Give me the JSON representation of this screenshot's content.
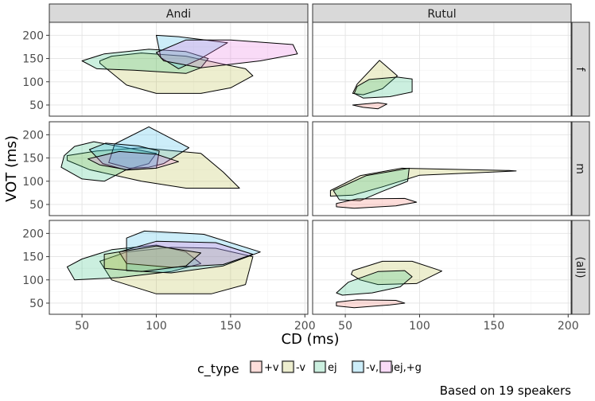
{
  "chart_data": {
    "type": "area",
    "facet_cols": [
      "Andi",
      "Rutul"
    ],
    "facet_rows": [
      "f",
      "m",
      "(all)"
    ],
    "xlabel": "CD (ms)",
    "ylabel": "VOT (ms)",
    "xlim": [
      28,
      202
    ],
    "ylim": [
      26,
      228
    ],
    "x_ticks": [
      50,
      100,
      150,
      200
    ],
    "y_ticks": [
      50,
      100,
      150,
      200
    ],
    "x_tick_labels": [
      "50",
      "100",
      "150",
      "200"
    ],
    "y_tick_labels": [
      "50",
      "100",
      "150",
      "200"
    ],
    "grid": true,
    "legend": {
      "title": "c_type",
      "position": "bottom",
      "entries": [
        {
          "label": "+v",
          "fill": "#f8766d"
        },
        {
          "label": "-v",
          "fill": "#b9bb3f"
        },
        {
          "label": "ej",
          "fill": "#2fbf7f"
        },
        {
          "label": "-v,+g",
          "fill": "#33b8e6"
        },
        {
          "label": "ej,+g",
          "fill": "#e66fe0"
        }
      ]
    },
    "caption": "Based on 19 speakers",
    "hulls": [
      {
        "col": 0,
        "row": 0,
        "series": "-v",
        "points": [
          [
            62,
            145
          ],
          [
            70,
            155
          ],
          [
            90,
            162
          ],
          [
            120,
            155
          ],
          [
            145,
            138
          ],
          [
            160,
            128
          ],
          [
            165,
            113
          ],
          [
            150,
            87
          ],
          [
            130,
            75
          ],
          [
            100,
            75
          ],
          [
            80,
            93
          ],
          [
            62,
            140
          ]
        ]
      },
      {
        "col": 0,
        "row": 0,
        "series": "ej",
        "points": [
          [
            50,
            145
          ],
          [
            65,
            160
          ],
          [
            95,
            170
          ],
          [
            120,
            165
          ],
          [
            135,
            150
          ],
          [
            130,
            130
          ],
          [
            120,
            118
          ],
          [
            85,
            125
          ],
          [
            60,
            128
          ]
        ]
      },
      {
        "col": 0,
        "row": 0,
        "series": "-v,+g",
        "points": [
          [
            100,
            200
          ],
          [
            115,
            197
          ],
          [
            148,
            184
          ],
          [
            130,
            150
          ],
          [
            115,
            128
          ],
          [
            103,
            152
          ]
        ]
      },
      {
        "col": 0,
        "row": 0,
        "series": "ej,+g",
        "points": [
          [
            100,
            163
          ],
          [
            120,
            190
          ],
          [
            150,
            190
          ],
          [
            192,
            180
          ],
          [
            195,
            160
          ],
          [
            170,
            145
          ],
          [
            130,
            130
          ],
          [
            105,
            145
          ]
        ]
      },
      {
        "col": 0,
        "row": 1,
        "series": "-v",
        "points": [
          [
            40,
            155
          ],
          [
            60,
            165
          ],
          [
            90,
            172
          ],
          [
            130,
            160
          ],
          [
            145,
            120
          ],
          [
            156,
            85
          ],
          [
            120,
            85
          ],
          [
            90,
            100
          ],
          [
            55,
            125
          ],
          [
            40,
            145
          ]
        ]
      },
      {
        "col": 0,
        "row": 1,
        "series": "ej",
        "points": [
          [
            38,
            155
          ],
          [
            45,
            175
          ],
          [
            58,
            185
          ],
          [
            80,
            172
          ],
          [
            100,
            160
          ],
          [
            95,
            138
          ],
          [
            80,
            125
          ],
          [
            65,
            100
          ],
          [
            50,
            105
          ],
          [
            36,
            130
          ]
        ]
      },
      {
        "col": 0,
        "row": 1,
        "series": "-v,+g",
        "points": [
          [
            72,
            180
          ],
          [
            95,
            217
          ],
          [
            122,
            172
          ],
          [
            105,
            138
          ],
          [
            95,
            130
          ],
          [
            82,
            128
          ],
          [
            68,
            140
          ]
        ]
      },
      {
        "col": 0,
        "row": 1,
        "series": "-v,+g",
        "points": [
          [
            55,
            168
          ],
          [
            66,
            182
          ],
          [
            88,
            176
          ],
          [
            102,
            165
          ],
          [
            100,
            128
          ],
          [
            80,
            124
          ],
          [
            64,
            138
          ]
        ]
      },
      {
        "col": 0,
        "row": 1,
        "series": "ej,+g",
        "points": [
          [
            54,
            148
          ],
          [
            75,
            164
          ],
          [
            100,
            158
          ],
          [
            115,
            142
          ],
          [
            100,
            128
          ],
          [
            80,
            125
          ],
          [
            62,
            135
          ]
        ]
      },
      {
        "col": 0,
        "row": 2,
        "series": "-v",
        "points": [
          [
            80,
            160
          ],
          [
            110,
            170
          ],
          [
            140,
            168
          ],
          [
            165,
            150
          ],
          [
            160,
            90
          ],
          [
            137,
            70
          ],
          [
            100,
            70
          ],
          [
            70,
            100
          ],
          [
            62,
            140
          ]
        ]
      },
      {
        "col": 0,
        "row": 2,
        "series": "ej",
        "points": [
          [
            50,
            145
          ],
          [
            70,
            165
          ],
          [
            100,
            175
          ],
          [
            120,
            160
          ],
          [
            130,
            135
          ],
          [
            110,
            118
          ],
          [
            75,
            105
          ],
          [
            45,
            100
          ],
          [
            40,
            128
          ]
        ]
      },
      {
        "col": 0,
        "row": 2,
        "series": "-v,+g",
        "points": [
          [
            80,
            190
          ],
          [
            92,
            205
          ],
          [
            132,
            198
          ],
          [
            170,
            160
          ],
          [
            145,
            130
          ],
          [
            110,
            115
          ],
          [
            80,
            120
          ]
        ]
      },
      {
        "col": 0,
        "row": 2,
        "series": "ej,+g",
        "points": [
          [
            75,
            160
          ],
          [
            100,
            183
          ],
          [
            140,
            180
          ],
          [
            165,
            155
          ],
          [
            145,
            133
          ],
          [
            110,
            127
          ],
          [
            80,
            135
          ]
        ]
      },
      {
        "col": 0,
        "row": 2,
        "series": "-v",
        "points": [
          [
            65,
            155
          ],
          [
            100,
            173
          ],
          [
            130,
            158
          ],
          [
            120,
            130
          ],
          [
            90,
            118
          ],
          [
            65,
            125
          ]
        ]
      },
      {
        "col": 1,
        "row": 0,
        "series": "-v",
        "points": [
          [
            58,
            95
          ],
          [
            73,
            146
          ],
          [
            85,
            113
          ],
          [
            75,
            85
          ],
          [
            62,
            72
          ],
          [
            55,
            75
          ]
        ]
      },
      {
        "col": 1,
        "row": 0,
        "series": "ej",
        "points": [
          [
            58,
            90
          ],
          [
            66,
            105
          ],
          [
            85,
            110
          ],
          [
            95,
            106
          ],
          [
            95,
            78
          ],
          [
            80,
            68
          ],
          [
            62,
            65
          ],
          [
            56,
            75
          ]
        ]
      },
      {
        "col": 1,
        "row": 0,
        "series": "+v",
        "points": [
          [
            55,
            50
          ],
          [
            72,
            55
          ],
          [
            78,
            52
          ],
          [
            72,
            42
          ],
          [
            62,
            45
          ]
        ]
      },
      {
        "col": 1,
        "row": 1,
        "series": "-v",
        "points": [
          [
            40,
            80
          ],
          [
            60,
            112
          ],
          [
            88,
            128
          ],
          [
            160,
            123
          ],
          [
            165,
            122
          ],
          [
            100,
            113
          ],
          [
            75,
            88
          ],
          [
            55,
            70
          ],
          [
            40,
            68
          ]
        ]
      },
      {
        "col": 1,
        "row": 1,
        "series": "ej",
        "points": [
          [
            42,
            80
          ],
          [
            64,
            112
          ],
          [
            93,
            128
          ],
          [
            92,
            100
          ],
          [
            74,
            77
          ],
          [
            60,
            58
          ],
          [
            46,
            60
          ]
        ]
      },
      {
        "col": 1,
        "row": 1,
        "series": "+v",
        "points": [
          [
            44,
            52
          ],
          [
            58,
            62
          ],
          [
            90,
            63
          ],
          [
            98,
            55
          ],
          [
            84,
            47
          ],
          [
            56,
            42
          ],
          [
            44,
            45
          ]
        ]
      },
      {
        "col": 1,
        "row": 2,
        "series": "-v",
        "points": [
          [
            55,
            120
          ],
          [
            75,
            140
          ],
          [
            95,
            140
          ],
          [
            115,
            119
          ],
          [
            98,
            92
          ],
          [
            72,
            90
          ],
          [
            60,
            100
          ],
          [
            54,
            112
          ]
        ]
      },
      {
        "col": 1,
        "row": 2,
        "series": "ej",
        "points": [
          [
            44,
            72
          ],
          [
            52,
            95
          ],
          [
            72,
            118
          ],
          [
            90,
            120
          ],
          [
            95,
            107
          ],
          [
            87,
            85
          ],
          [
            68,
            72
          ],
          [
            48,
            67
          ]
        ]
      },
      {
        "col": 1,
        "row": 2,
        "series": "+v",
        "points": [
          [
            44,
            52
          ],
          [
            58,
            57
          ],
          [
            84,
            56
          ],
          [
            90,
            50
          ],
          [
            80,
            46
          ],
          [
            56,
            40
          ],
          [
            44,
            44
          ]
        ]
      }
    ]
  }
}
